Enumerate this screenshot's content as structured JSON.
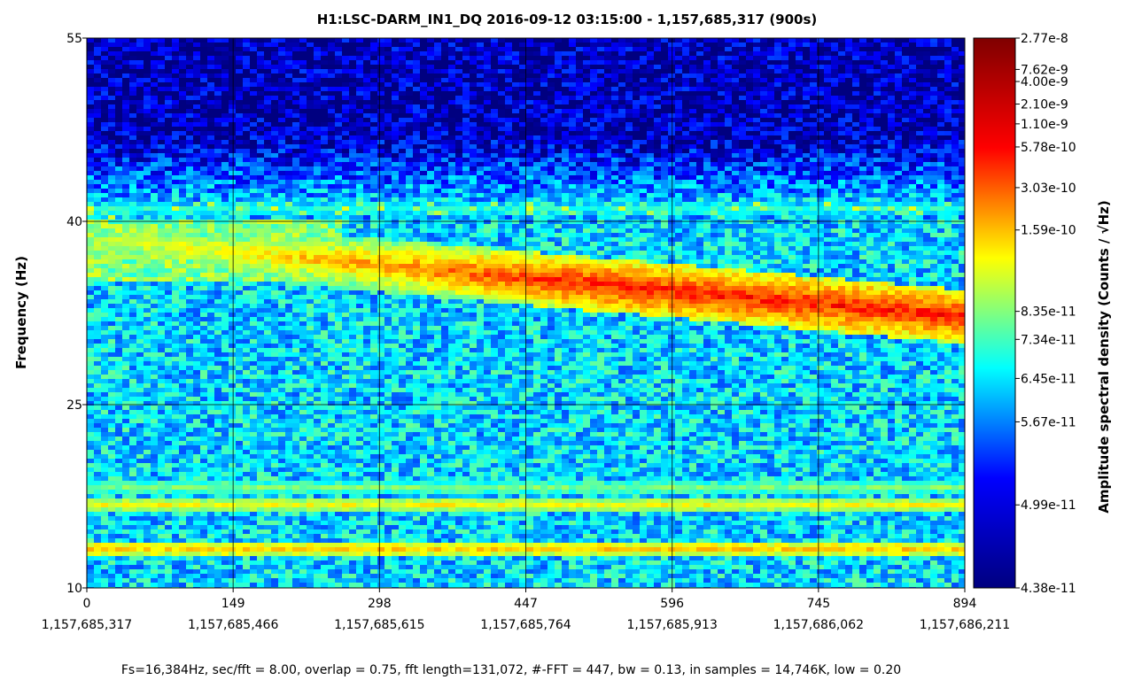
{
  "chart_data": {
    "type": "heatmap",
    "title": "H1:LSC-DARM_IN1_DQ 2016-09-12 03:15:00 - 1,157,685,317 (900s)",
    "ylabel": "Frequency (Hz)",
    "xlabel": "",
    "x_ticks": [
      {
        "value": 0,
        "label": "0",
        "gps": "1,157,685,317"
      },
      {
        "value": 149,
        "label": "149",
        "gps": "1,157,685,466"
      },
      {
        "value": 298,
        "label": "298",
        "gps": "1,157,685,615"
      },
      {
        "value": 447,
        "label": "447",
        "gps": "1,157,685,764"
      },
      {
        "value": 596,
        "label": "596",
        "gps": "1,157,685,913"
      },
      {
        "value": 745,
        "label": "745",
        "gps": "1,157,686,062"
      },
      {
        "value": 894,
        "label": "894",
        "gps": "1,157,686,211"
      }
    ],
    "y_ticks": [
      {
        "value": 10,
        "label": "10"
      },
      {
        "value": 25,
        "label": "25"
      },
      {
        "value": 40,
        "label": "40"
      },
      {
        "value": 55,
        "label": "55"
      }
    ],
    "xlim": [
      0,
      894
    ],
    "ylim": [
      10,
      55
    ],
    "grid": true,
    "colorbar": {
      "label": "Amplitude spectral density (Counts / √Hz)",
      "ticks": [
        "2.77e-8",
        "7.62e-9",
        "4.00e-9",
        "2.10e-9",
        "1.10e-9",
        "5.78e-10",
        "3.03e-10",
        "1.59e-10",
        "8.35e-11",
        "7.34e-11",
        "6.45e-11",
        "5.67e-11",
        "4.99e-11",
        "4.38e-11"
      ],
      "tick_fractions": [
        0,
        0.057,
        0.079,
        0.12,
        0.156,
        0.198,
        0.272,
        0.349,
        0.497,
        0.548,
        0.619,
        0.698,
        0.849,
        1
      ],
      "colors": [
        "#7f0000",
        "#ff0000",
        "#ffff00",
        "#00ffff",
        "#0000ff",
        "#00007f"
      ]
    },
    "features": [
      {
        "kind": "steady-line",
        "freq_hz": 41.0,
        "strength": 0.42
      },
      {
        "kind": "steady-line",
        "freq_hz": 18.2,
        "strength": 0.5
      },
      {
        "kind": "steady-line",
        "freq_hz": 16.8,
        "strength": 0.62
      },
      {
        "kind": "steady-line",
        "freq_hz": 13.2,
        "strength": 0.68
      },
      {
        "kind": "drifting-band",
        "start_freq_hz": 38.5,
        "end_freq_hz": 32.2,
        "strength": 0.85
      }
    ],
    "footer": "Fs=16,384Hz, sec/fft = 8.00, overlap = 0.75, fft length=131,072, #-FFT = 447, bw = 0.13, in samples = 14,746K, low = 0.20"
  }
}
